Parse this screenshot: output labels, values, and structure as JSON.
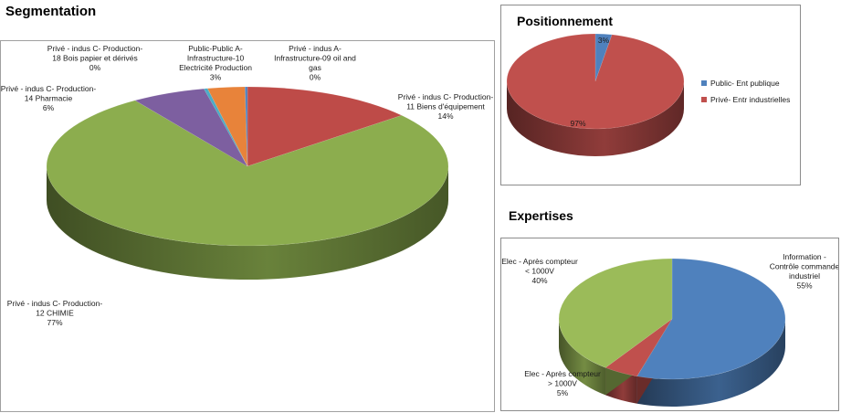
{
  "charts": {
    "segmentation": {
      "title": "Segmentation",
      "chart_data": {
        "type": "pie",
        "title": "Segmentation",
        "slices": [
          {
            "label": [
              "Privé - indus C- Production-",
              "11 Biens d'équipement",
              "14%"
            ],
            "value": 14,
            "color": "#BE4B48"
          },
          {
            "label": [
              "Privé - indus C- Production-",
              "12 CHIMIE",
              "77%"
            ],
            "value": 77,
            "color": "#8CAD4E"
          },
          {
            "label": [
              "Privé - indus C- Production-",
              "14 Pharmacie",
              "6%"
            ],
            "value": 6,
            "color": "#7D5FA0"
          },
          {
            "label": [
              "Privé - indus C- Production-",
              "18 Bois papier et dérivés",
              "0%"
            ],
            "value": 0.3,
            "color": "#4BACC6"
          },
          {
            "label": [
              "Public-Public A-",
              "Infrastructure-10",
              "Electricité Production",
              "3%"
            ],
            "value": 3,
            "color": "#E8833A"
          },
          {
            "label": [
              "Privé - indus A-",
              "Infrastructure-09 oil and",
              "gas",
              "0%"
            ],
            "value": 0.2,
            "color": "#4F81BD"
          }
        ]
      }
    },
    "positionnement": {
      "title": "Positionnement",
      "chart_data": {
        "type": "pie",
        "title": "Positionnement",
        "slices": [
          {
            "legend": "Public- Ent publique",
            "label": [
              "3%"
            ],
            "value": 3,
            "color": "#4F81BD"
          },
          {
            "legend": "Privé- Entr industrielles",
            "label": [
              "97%"
            ],
            "value": 97,
            "color": "#C0504D"
          }
        ],
        "legend_position": "right"
      }
    },
    "expertises": {
      "title": "Expertises",
      "chart_data": {
        "type": "pie",
        "title": "Expertises",
        "slices": [
          {
            "label": [
              "Information -",
              "Contrôle commande",
              "industriel",
              "55%"
            ],
            "value": 55,
            "color": "#4F81BD"
          },
          {
            "label": [
              "Elec - Après compteur",
              "> 1000V",
              "5%"
            ],
            "value": 5,
            "color": "#C0504D"
          },
          {
            "label": [
              "Elec - Après compteur",
              "< 1000V",
              "40%"
            ],
            "value": 40,
            "color": "#9BBB59"
          }
        ]
      }
    }
  }
}
